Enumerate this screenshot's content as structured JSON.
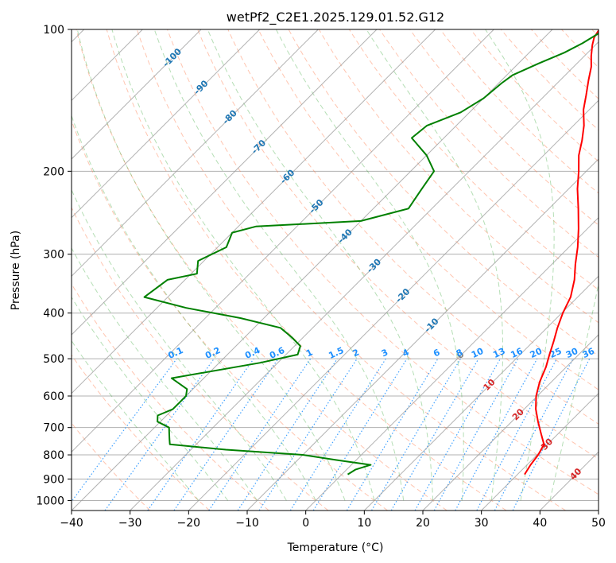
{
  "chart_data": {
    "type": "line",
    "subtype": "skew-t log-p diagram",
    "title": "wetPf2_C2E1.2025.129.01.52.G12",
    "xlabel": "Temperature (°C)",
    "ylabel": "Pressure (hPa)",
    "xlim": [
      -40,
      50
    ],
    "ylim": [
      1050,
      100
    ],
    "yscale": "log",
    "x_ticks": [
      -40,
      -30,
      -20,
      -10,
      0,
      10,
      20,
      30,
      40,
      50
    ],
    "y_ticks": [
      100,
      200,
      300,
      400,
      500,
      600,
      700,
      800,
      900,
      1000
    ],
    "grid": true,
    "series": [
      {
        "key": "temperature",
        "color": "#ff0000",
        "points": [
          [
            31.2,
            880
          ],
          [
            30.6,
            840
          ],
          [
            30.2,
            800
          ],
          [
            29.4,
            760
          ],
          [
            27.0,
            720
          ],
          [
            24.5,
            680
          ],
          [
            22.0,
            640
          ],
          [
            19.8,
            600
          ],
          [
            18.0,
            560
          ],
          [
            16.5,
            520
          ],
          [
            15.0,
            490
          ],
          [
            13.5,
            460
          ],
          [
            11.8,
            430
          ],
          [
            10.2,
            400
          ],
          [
            8.8,
            370
          ],
          [
            6.5,
            340
          ],
          [
            4.0,
            315
          ],
          [
            1.5,
            290
          ],
          [
            -1.5,
            265
          ],
          [
            -5.0,
            240
          ],
          [
            -8.5,
            218
          ],
          [
            -11.3,
            200
          ],
          [
            -14.0,
            185
          ],
          [
            -16.0,
            172
          ],
          [
            -18.2,
            160
          ],
          [
            -21.0,
            148
          ],
          [
            -23.0,
            138
          ],
          [
            -25.2,
            128
          ],
          [
            -27.0,
            120
          ],
          [
            -28.8,
            114
          ],
          [
            -30.5,
            108
          ],
          [
            -31.5,
            104
          ],
          [
            -32.0,
            100
          ]
        ]
      },
      {
        "key": "dewpoint",
        "color": "#008000",
        "points": [
          [
            1.0,
            880
          ],
          [
            1.5,
            860
          ],
          [
            3.3,
            840
          ],
          [
            -3.5,
            820
          ],
          [
            -10.0,
            800
          ],
          [
            -24.0,
            780
          ],
          [
            -34.5,
            760
          ],
          [
            -35.5,
            740
          ],
          [
            -36.5,
            720
          ],
          [
            -37.5,
            700
          ],
          [
            -40.5,
            680
          ],
          [
            -41.5,
            660
          ],
          [
            -40.0,
            640
          ],
          [
            -40.0,
            620
          ],
          [
            -40.0,
            600
          ],
          [
            -41.0,
            580
          ],
          [
            -45.5,
            550
          ],
          [
            -33.0,
            510
          ],
          [
            -28.0,
            490
          ],
          [
            -29.0,
            470
          ],
          [
            -32.0,
            450
          ],
          [
            -35.5,
            430
          ],
          [
            -44.0,
            410
          ],
          [
            -55.0,
            390
          ],
          [
            -64.0,
            370
          ],
          [
            -63.0,
            340
          ],
          [
            -59.0,
            330
          ],
          [
            -61.0,
            310
          ],
          [
            -58.5,
            290
          ],
          [
            -60.0,
            270
          ],
          [
            -57.0,
            262
          ],
          [
            -40.0,
            255
          ],
          [
            -34.0,
            240
          ],
          [
            -35.0,
            220
          ],
          [
            -36.0,
            200
          ],
          [
            -40.0,
            185
          ],
          [
            -45.5,
            170
          ],
          [
            -45.0,
            160
          ],
          [
            -41.5,
            150
          ],
          [
            -40.0,
            140
          ],
          [
            -39.5,
            130
          ],
          [
            -39.0,
            125
          ],
          [
            -36.5,
            118
          ],
          [
            -34.0,
            112
          ],
          [
            -32.5,
            107
          ],
          [
            -31.0,
            100
          ]
        ]
      }
    ],
    "dry_adiabat_color": "#ff7f50",
    "moist_adiabat_color": "#2ca02c",
    "mixing_ratio_color": "#1e90ff",
    "isotherm_color": "#999999",
    "skewed_isotherm_labels": {
      "values": [
        -100,
        -90,
        -80,
        -70,
        -60,
        -50,
        -40,
        -30,
        -20,
        -10,
        0,
        10,
        20,
        30,
        40
      ],
      "neg_color": "#1f77b4",
      "zero_color": "#7f7f7f",
      "pos_color": "#d62728"
    },
    "mixing_ratio_labels": [
      "0.1",
      "0.2",
      "0.4",
      "0.6",
      "1",
      "1.5",
      "2",
      "3",
      "4",
      "6",
      "8",
      "10",
      "13",
      "16",
      "20",
      "25",
      "30",
      "36"
    ]
  }
}
